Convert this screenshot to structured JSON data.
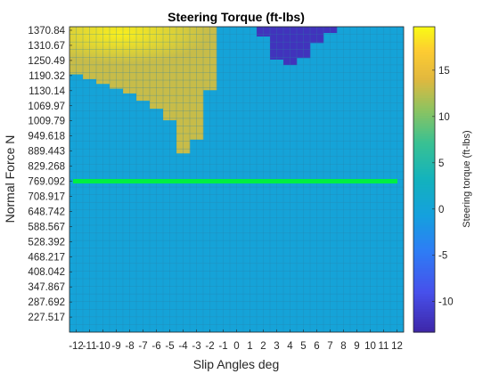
{
  "chart_data": {
    "type": "heatmap",
    "title": "Steering Torque (ft-lbs)",
    "xlabel": "Slip Angles deg",
    "ylabel": "Normal Force N",
    "colorbar_label": "Steering torque (ft-lbs)",
    "x_ticks": [
      "-12",
      "-11",
      "-10",
      "-9",
      "-8",
      "-7",
      "-6",
      "-5",
      "-4",
      "-3",
      "-2",
      "-1",
      "0",
      "1",
      "2",
      "3",
      "4",
      "5",
      "6",
      "7",
      "8",
      "9",
      "10",
      "11",
      "12"
    ],
    "y_ticks": [
      "1370.84",
      "1310.67",
      "1250.49",
      "1190.32",
      "1130.14",
      "1069.97",
      "1009.79",
      "949.618",
      "889.443",
      "829.268",
      "769.092",
      "708.917",
      "648.742",
      "588.567",
      "528.392",
      "468.217",
      "408.042",
      "347.867",
      "287.692",
      "227.517"
    ],
    "y_range": [
      167.5,
      1385.0
    ],
    "colorbar_ticks": [
      15,
      10,
      5,
      0,
      -5,
      -10
    ],
    "clim": [
      -13.3,
      19.7
    ],
    "colormap": "parula",
    "grid": true,
    "background_value": 0,
    "regions": [
      {
        "name": "positive torque",
        "value": 13,
        "peak_value": 19,
        "x_range": [
          -12,
          -2
        ],
        "y_range": [
          1130,
          1385
        ],
        "lower_edge_by_slip_angle": {
          "-12": 1195,
          "-11": 1176,
          "-10": 1157,
          "-9": 1138,
          "-8": 1119,
          "-7": 1090,
          "-6": 1058,
          "-5": 1012,
          "-4": 880,
          "-3": 935,
          "-2": 1132
        }
      },
      {
        "name": "negative torque",
        "value": -12,
        "x_range": [
          2,
          7
        ],
        "y_range": [
          1230,
          1385
        ],
        "lower_edge_by_slip_angle": {
          "2": 1346,
          "3": 1254,
          "4": 1232,
          "5": 1260,
          "6": 1320,
          "7": 1360
        }
      }
    ],
    "reference_line": {
      "normal_force": 769.092,
      "color": "#00ee44"
    }
  }
}
